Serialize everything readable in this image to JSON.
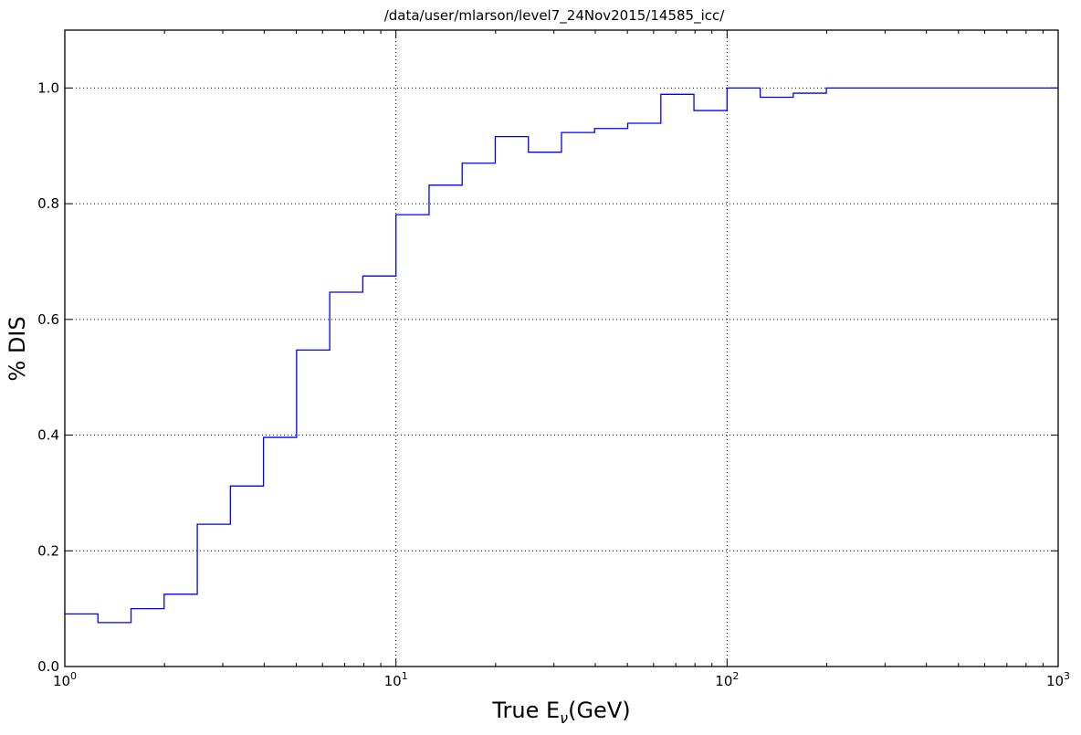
{
  "chart_data": {
    "type": "line",
    "title": "/data/user/mlarson/level7_24Nov2015/14585_icc/",
    "xlabel": "True E_ν(GeV)",
    "xlabel_parts": {
      "main": "True E",
      "sub": "ν",
      "rest": "(GeV)"
    },
    "ylabel": "% DIS",
    "xscale": "log",
    "xlim": [
      1,
      1000
    ],
    "ylim": [
      0.0,
      1.1
    ],
    "grid": true,
    "series_color": "#0000ff",
    "x_ticks": [
      {
        "value": 1,
        "base": "10",
        "exp": "0"
      },
      {
        "value": 10,
        "base": "10",
        "exp": "1"
      },
      {
        "value": 100,
        "base": "10",
        "exp": "2"
      },
      {
        "value": 1000,
        "base": "10",
        "exp": "3"
      }
    ],
    "y_ticks": [
      {
        "value": 0.0,
        "label": "0.0"
      },
      {
        "value": 0.2,
        "label": "0.2"
      },
      {
        "value": 0.4,
        "label": "0.4"
      },
      {
        "value": 0.6,
        "label": "0.6"
      },
      {
        "value": 0.8,
        "label": "0.8"
      },
      {
        "value": 1.0,
        "label": "1.0"
      }
    ],
    "series": [
      {
        "drawstyle": "steps",
        "bin_edges": [
          1.0,
          1.259,
          1.585,
          1.995,
          2.512,
          3.162,
          3.981,
          5.012,
          6.31,
          7.943,
          10.0,
          12.59,
          15.85,
          19.95,
          25.12,
          31.62,
          39.81,
          50.12,
          63.1,
          79.43,
          100.0,
          125.9,
          158.5,
          199.5,
          251.2,
          1000.0
        ],
        "values": [
          0.091,
          0.076,
          0.1,
          0.125,
          0.246,
          0.312,
          0.396,
          0.547,
          0.647,
          0.675,
          0.781,
          0.832,
          0.87,
          0.916,
          0.889,
          0.923,
          0.93,
          0.939,
          0.989,
          0.961,
          1.0,
          0.984,
          0.991,
          1.0,
          1.0
        ]
      }
    ]
  }
}
